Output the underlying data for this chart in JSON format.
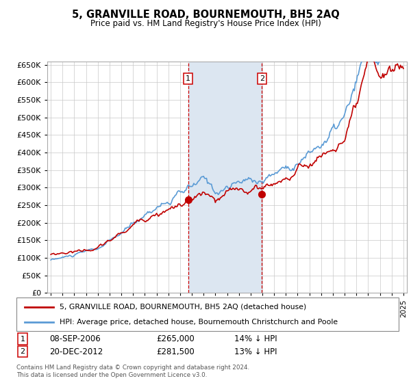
{
  "title": "5, GRANVILLE ROAD, BOURNEMOUTH, BH5 2AQ",
  "subtitle": "Price paid vs. HM Land Registry's House Price Index (HPI)",
  "legend_entry1": "5, GRANVILLE ROAD, BOURNEMOUTH, BH5 2AQ (detached house)",
  "legend_entry2": "HPI: Average price, detached house, Bournemouth Christchurch and Poole",
  "footnote": "Contains HM Land Registry data © Crown copyright and database right 2024.\nThis data is licensed under the Open Government Licence v3.0.",
  "transaction1_label": "1",
  "transaction1_date": "08-SEP-2006",
  "transaction1_price": "£265,000",
  "transaction1_hpi": "14% ↓ HPI",
  "transaction1_year": 2006.69,
  "transaction1_value": 265000,
  "transaction2_label": "2",
  "transaction2_date": "20-DEC-2012",
  "transaction2_price": "£281,500",
  "transaction2_hpi": "13% ↓ HPI",
  "transaction2_year": 2012.97,
  "transaction2_value": 281500,
  "hpi_color": "#5b9bd5",
  "price_color": "#c00000",
  "vline_color": "#cc0000",
  "shade_color": "#dce6f1",
  "grid_color": "#c8c8c8",
  "background_color": "#ffffff",
  "ylim_min": 0,
  "ylim_max": 660000
}
